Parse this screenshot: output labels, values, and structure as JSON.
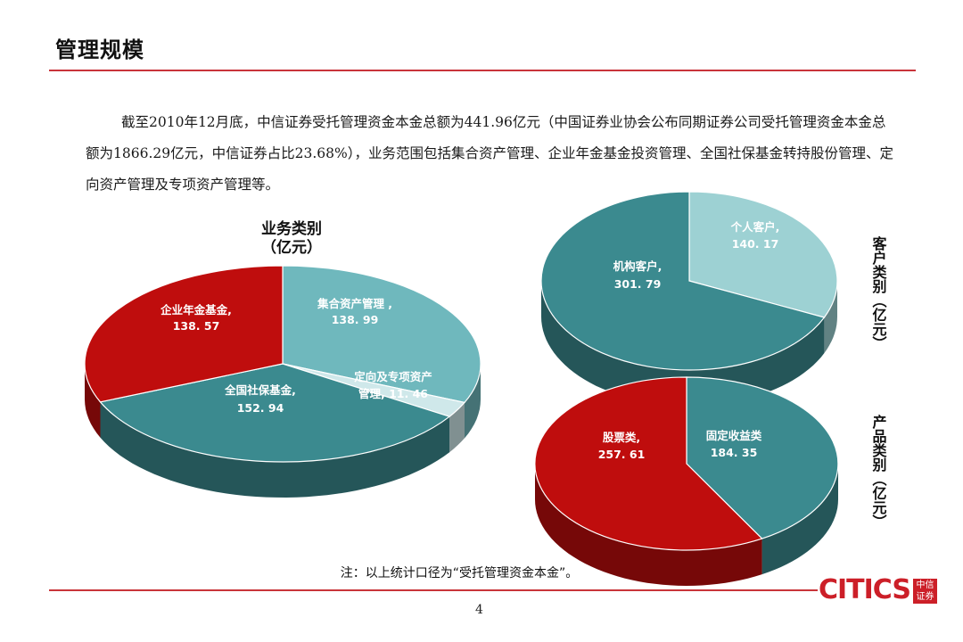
{
  "header": {
    "title": "管理规模"
  },
  "intro": {
    "text": "截至2010年12月底，中信证券受托管理资金本金总额为441.96亿元（中国证券业协会公布同期证券公司受托管理资金本金总额为1866.29亿元，中信证券占比23.68%），业务范围包括集合资产管理、企业年金基金投资管理、全国社保基金转持股份管理、定向资产管理及专项资产管理等。"
  },
  "footer": {
    "note": "注：以上统计口径为“受托管理资金本金”。",
    "page_number": "4",
    "logo_text": "CITICS",
    "logo_box_line1": "中信",
    "logo_box_line2": "证券"
  },
  "colors": {
    "accent_red": "#c9343a",
    "teal": "#3b8a8f",
    "light_teal": "#6fb8bd",
    "pale_teal": "#9dd1d3",
    "very_pale": "#cfe8ea",
    "red": "#bf0d0d"
  },
  "chart_data": [
    {
      "type": "pie",
      "title_line1": "业务类别",
      "title_line2": "（亿元）",
      "unit": "亿元",
      "slices": [
        {
          "label": "集合资产管理 ,",
          "value": 138.99,
          "value_label": "138. 99",
          "color": "#6fb8bd"
        },
        {
          "label": "定向及专项资产",
          "label2": "管理, 11. 46",
          "value": 11.46,
          "value_label": "",
          "color": "#cfe8ea"
        },
        {
          "label": "全国社保基金,",
          "value": 152.94,
          "value_label": "152. 94",
          "color": "#3b8a8f"
        },
        {
          "label": "企业年金基金,",
          "value": 138.57,
          "value_label": "138. 57",
          "color": "#bf0d0d"
        }
      ]
    },
    {
      "type": "pie",
      "title": "客户类别（亿元）",
      "unit": "亿元",
      "slices": [
        {
          "label": "个人客户,",
          "value": 140.17,
          "value_label": "140. 17",
          "color": "#9dd1d3"
        },
        {
          "label": "机构客户,",
          "value": 301.79,
          "value_label": "301. 79",
          "color": "#3b8a8f"
        }
      ]
    },
    {
      "type": "pie",
      "title": "产品类别（亿元）",
      "unit": "亿元",
      "slices": [
        {
          "label": "固定收益类",
          "value": 184.35,
          "value_label": "184. 35",
          "color": "#3b8a8f"
        },
        {
          "label": "股票类,",
          "value": 257.61,
          "value_label": "257. 61",
          "color": "#bf0d0d"
        }
      ]
    }
  ]
}
